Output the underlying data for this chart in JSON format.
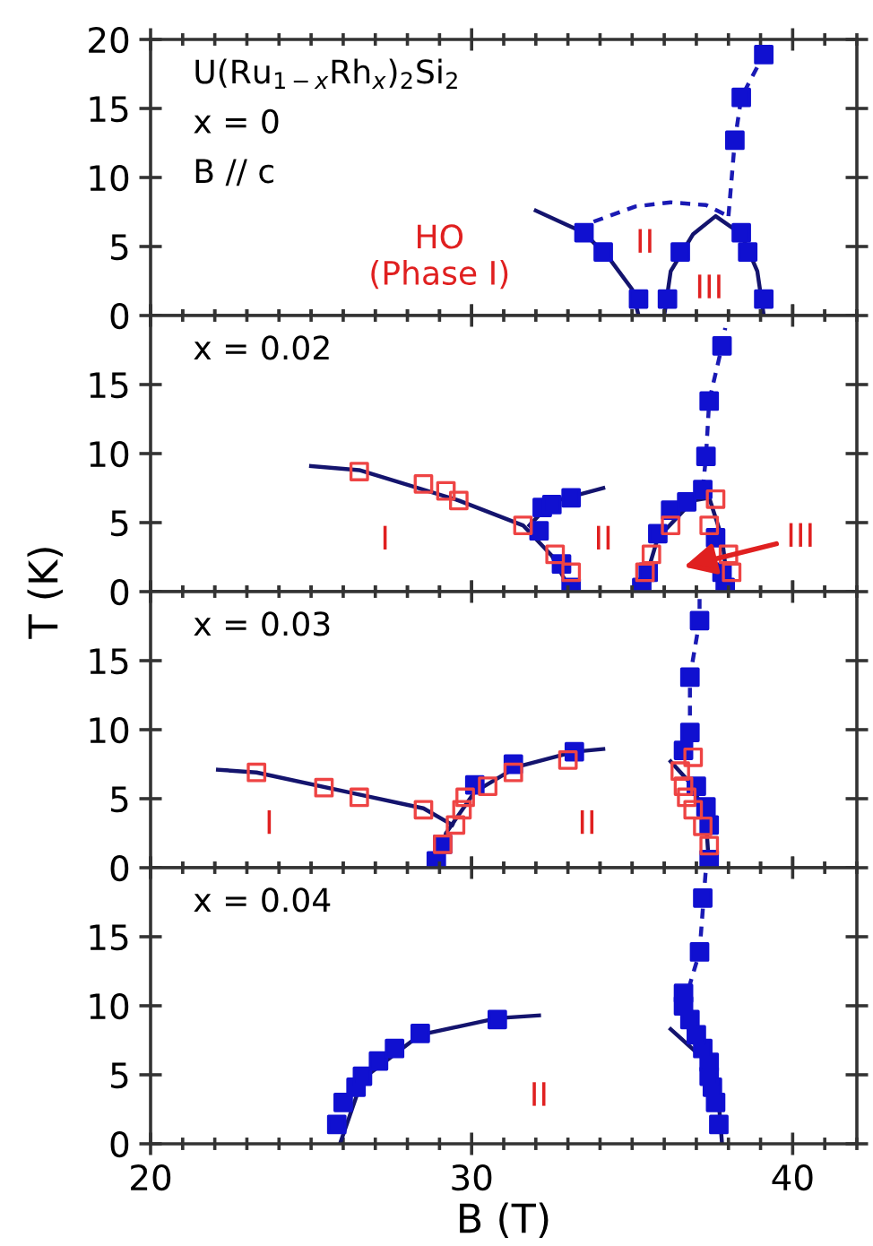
{
  "chart_data": [
    {
      "type": "scatter",
      "xlim": [
        20,
        42
      ],
      "xticks": [
        20,
        30,
        40
      ],
      "ylim": [
        0,
        20
      ],
      "yticks": [
        0,
        5,
        10,
        15,
        20
      ],
      "tick_labels": "y",
      "annotations": [
        "U(Ru$_{1−x}$Rh$_{x}$)$_{2}$Si$_{2}$",
        "x = 0",
        "B // c",
        "HO\n(Phase I)",
        "II",
        "III"
      ],
      "series": [
        {
          "type": "line",
          "color": "#14146e",
          "line_style": "solid",
          "x": [
            32.0,
            33.5,
            34.3,
            35.0,
            35.2
          ],
          "values": [
            7.6,
            6.0,
            4.1,
            1.9,
            0
          ]
        },
        {
          "type": "line",
          "color": "#14146e",
          "line_style": "solid",
          "x": [
            36.0,
            36.2,
            36.9,
            37.6,
            38.4,
            38.9,
            39.1
          ],
          "values": [
            0,
            3.2,
            5.9,
            7.2,
            5.9,
            3.2,
            0
          ]
        },
        {
          "type": "line",
          "color": "#1a1ab4",
          "line_style": "dashed",
          "x": [
            33.8,
            35.1,
            36.2,
            37.3,
            38.0
          ],
          "values": [
            6.8,
            7.9,
            8.2,
            8.0,
            7.2
          ]
        },
        {
          "type": "line",
          "color": "#1a1ab4",
          "line_style": "dashed",
          "x": [
            38.0,
            38.2,
            38.4,
            39.1,
            39.3
          ],
          "values": [
            7.2,
            12.7,
            15.8,
            18.9,
            19.6
          ]
        },
        {
          "color": "#1010d0",
          "marker": "square",
          "x": [
            33.5,
            34.1,
            35.2,
            36.1,
            36.5,
            38.4,
            38.6,
            39.1,
            38.2,
            38.4,
            39.1
          ],
          "values": [
            6.0,
            4.6,
            1.2,
            1.2,
            4.6,
            6.0,
            4.6,
            1.2,
            12.7,
            15.8,
            18.9
          ]
        }
      ]
    },
    {
      "type": "scatter",
      "xlim": [
        20,
        42
      ],
      "xticks": [
        20,
        30,
        40
      ],
      "ylim": [
        0,
        20
      ],
      "yticks": [
        0,
        5,
        10,
        15
      ],
      "tick_labels": "y",
      "ylabel": "T (K)",
      "annotations": [
        "x = 0.02",
        "I",
        "II",
        "III"
      ],
      "series": [
        {
          "type": "line",
          "color": "#14146e",
          "line_style": "solid",
          "x": [
            25.0,
            26.5,
            29.6,
            31.6,
            32.5,
            33.1
          ],
          "values": [
            9.1,
            8.8,
            6.6,
            4.8,
            2.6,
            0
          ]
        },
        {
          "type": "line",
          "color": "#14146e",
          "line_style": "solid",
          "x": [
            31.8,
            32.5,
            34.1
          ],
          "values": [
            4.8,
            6.5,
            7.5
          ]
        },
        {
          "type": "line",
          "color": "#14146e",
          "line_style": "solid",
          "x": [
            35.3,
            35.8,
            36.9,
            37.4,
            37.8,
            38.0
          ],
          "values": [
            0,
            3.9,
            6.6,
            6.8,
            3.9,
            0
          ]
        },
        {
          "type": "line",
          "color": "#1a1ab4",
          "line_style": "dashed",
          "x": [
            37.2,
            37.3,
            37.4,
            37.8,
            37.9
          ],
          "values": [
            7.4,
            9.8,
            13.8,
            17.8,
            19.1
          ]
        },
        {
          "color": "#1010d0",
          "marker": "square",
          "x": [
            32.1,
            32.2,
            32.5,
            33.1,
            32.8,
            33.1,
            35.3,
            35.5,
            35.8,
            36.2,
            36.7,
            37.2,
            37.3,
            37.4,
            37.8,
            37.6,
            37.8,
            37.9
          ],
          "values": [
            4.4,
            6.1,
            6.3,
            6.8,
            2.0,
            0.3,
            0.3,
            1.4,
            4.2,
            5.9,
            6.5,
            7.4,
            9.8,
            13.8,
            17.8,
            3.9,
            1.4,
            0.3
          ]
        },
        {
          "color": "#ee4444",
          "marker": "square-open",
          "x": [
            26.5,
            28.5,
            29.2,
            29.6,
            31.6,
            32.6,
            33.1,
            35.4,
            35.6,
            36.2,
            37.6,
            37.4,
            38.0,
            38.1
          ],
          "values": [
            8.7,
            7.8,
            7.3,
            6.6,
            4.8,
            2.7,
            1.4,
            1.4,
            2.7,
            4.8,
            6.7,
            4.8,
            2.7,
            1.4
          ]
        }
      ]
    },
    {
      "type": "scatter",
      "xlim": [
        20,
        42
      ],
      "xticks": [
        20,
        30,
        40
      ],
      "ylim": [
        0,
        20
      ],
      "yticks": [
        0,
        5,
        10,
        15
      ],
      "tick_labels": "y",
      "annotations": [
        "x = 0.03",
        "I",
        "II"
      ],
      "series": [
        {
          "type": "line",
          "color": "#14146e",
          "line_style": "solid",
          "x": [
            22.1,
            23.3,
            26.5,
            28.5,
            29.4
          ],
          "values": [
            7.1,
            6.9,
            5.3,
            4.3,
            3.1
          ]
        },
        {
          "type": "line",
          "color": "#14146e",
          "line_style": "solid",
          "x": [
            28.9,
            29.2,
            30.1,
            31.4,
            33.2,
            34.1
          ],
          "values": [
            0,
            2.5,
            5.5,
            7.3,
            8.4,
            8.6
          ]
        },
        {
          "type": "line",
          "color": "#14146e",
          "line_style": "solid",
          "x": [
            36.2,
            36.9,
            37.3,
            37.4
          ],
          "values": [
            7.7,
            5.9,
            3.4,
            0
          ]
        },
        {
          "type": "line",
          "color": "#1a1ab4",
          "line_style": "dashed",
          "x": [
            36.6,
            36.8,
            36.8,
            37.1,
            37.1
          ],
          "values": [
            8.5,
            9.8,
            13.8,
            17.9,
            20
          ]
        },
        {
          "color": "#1010d0",
          "marker": "square",
          "x": [
            28.9,
            29.1,
            30.1,
            31.3,
            33.2,
            37.1,
            36.8,
            36.8,
            36.6,
            37.0,
            37.3,
            37.4,
            37.4
          ],
          "values": [
            0.5,
            1.7,
            6.0,
            7.5,
            8.4,
            17.9,
            13.8,
            9.8,
            8.5,
            5.9,
            4.4,
            3.1,
            0.6
          ]
        },
        {
          "color": "#ee4444",
          "marker": "square-open",
          "x": [
            23.3,
            25.4,
            26.5,
            28.5,
            29.1,
            29.5,
            29.7,
            29.8,
            30.5,
            31.3,
            33.0,
            36.9,
            36.5,
            36.6,
            36.7,
            36.9,
            37.2,
            37.4
          ],
          "values": [
            6.9,
            5.8,
            5.1,
            4.2,
            1.7,
            3.1,
            4.2,
            5.1,
            5.9,
            6.9,
            7.8,
            8.0,
            7.0,
            5.9,
            5.1,
            4.2,
            3.0,
            1.6
          ]
        }
      ]
    },
    {
      "type": "scatter",
      "xlim": [
        20,
        42
      ],
      "xticks": [
        20,
        30,
        40
      ],
      "ylim": [
        0,
        20
      ],
      "yticks": [
        0,
        5,
        10,
        15
      ],
      "xlabel": "B (T)",
      "annotations": [
        "x = 0.04",
        "II"
      ],
      "series": [
        {
          "type": "line",
          "color": "#14146e",
          "line_style": "solid",
          "x": [
            25.9,
            26.6,
            28.4,
            30.8,
            32.1
          ],
          "values": [
            0,
            4.7,
            7.9,
            9.1,
            9.3
          ]
        },
        {
          "type": "line",
          "color": "#14146e",
          "line_style": "solid",
          "x": [
            36.2,
            37.3,
            37.7,
            37.8
          ],
          "values": [
            8.3,
            6.0,
            3.0,
            0
          ]
        },
        {
          "type": "line",
          "color": "#1a1ab4",
          "line_style": "dashed",
          "x": [
            36.6,
            37.1,
            37.3
          ],
          "values": [
            10.0,
            13.9,
            20
          ]
        },
        {
          "color": "#1010d0",
          "marker": "square",
          "x": [
            25.8,
            26.0,
            26.4,
            26.6,
            27.1,
            27.6,
            28.4,
            30.8,
            37.7,
            37.6,
            37.5,
            37.4,
            37.4,
            37.2,
            37.0,
            36.8,
            36.6,
            36.6,
            37.1,
            37.2
          ],
          "values": [
            1.4,
            3.0,
            4.1,
            4.9,
            6.0,
            6.9,
            8.0,
            9.0,
            1.4,
            3.0,
            4.1,
            4.9,
            5.9,
            6.9,
            7.9,
            9.0,
            10.0,
            10.9,
            13.9,
            17.8
          ]
        }
      ]
    }
  ]
}
